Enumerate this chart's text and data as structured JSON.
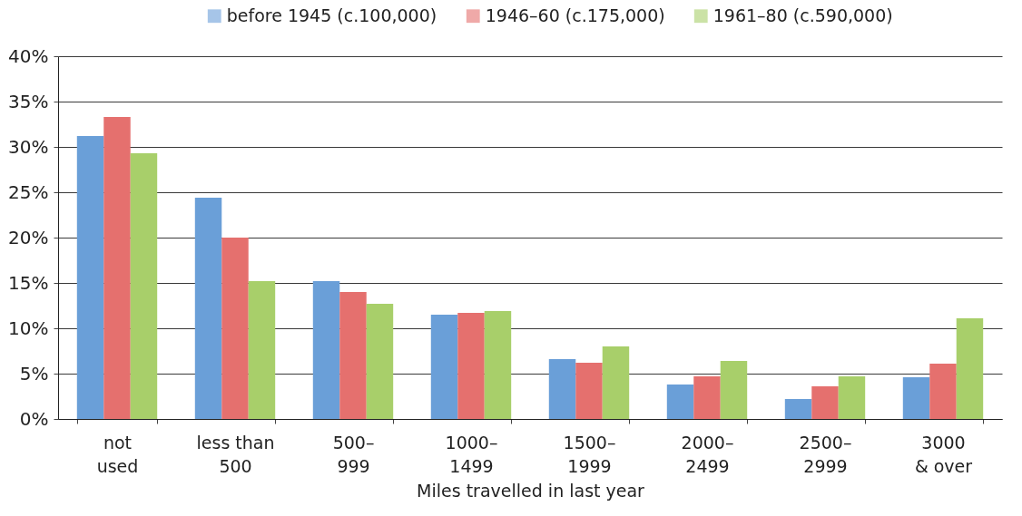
{
  "chart_data": {
    "type": "bar",
    "xlabel": "Miles travelled in last year",
    "categories": [
      "not\nused",
      "less than\n500",
      "500–\n999",
      "1000–\n1499",
      "1500–\n1999",
      "2000–\n2499",
      "2500–\n2999",
      "3000\n& over"
    ],
    "series": [
      {
        "name": "before 1945 (c.100,000)",
        "color": "#6a9fd8",
        "values": [
          31.2,
          24.4,
          15.2,
          11.5,
          6.6,
          3.8,
          2.2,
          4.6
        ]
      },
      {
        "name": "1946–60 (c.175,000)",
        "color": "#e5706e",
        "values": [
          33.3,
          20.0,
          14.0,
          11.7,
          6.2,
          4.7,
          3.6,
          6.1
        ]
      },
      {
        "name": "1961–80 (c.590,000)",
        "color": "#a8cf6a",
        "values": [
          29.3,
          15.2,
          12.7,
          11.9,
          8.0,
          6.4,
          4.7,
          11.1
        ]
      }
    ],
    "ylim": [
      0,
      40
    ],
    "yticks": [
      {
        "value": 0,
        "label": "0%"
      },
      {
        "value": 5,
        "label": "5%"
      },
      {
        "value": 10,
        "label": "10%"
      },
      {
        "value": 15,
        "label": "15%"
      },
      {
        "value": 20,
        "label": "20%"
      },
      {
        "value": 25,
        "label": "25%"
      },
      {
        "value": 30,
        "label": "30%"
      },
      {
        "value": 35,
        "label": "35%"
      },
      {
        "value": 40,
        "label": "40%"
      }
    ],
    "grid": "y",
    "legend": "top"
  }
}
